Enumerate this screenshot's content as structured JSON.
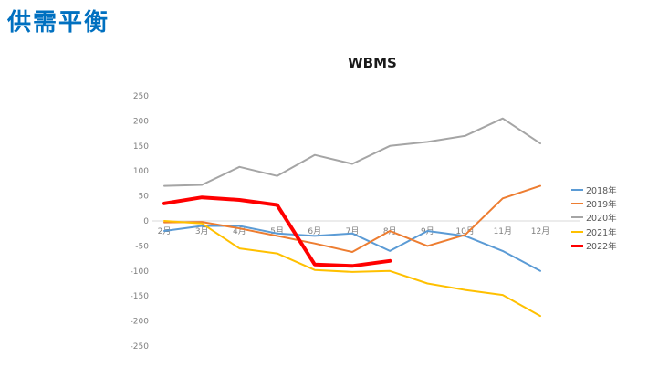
{
  "page": {
    "title": "供需平衡"
  },
  "chart_data": {
    "type": "line",
    "title": "WBMS",
    "categories": [
      "2月",
      "3月",
      "4月",
      "5月",
      "6月",
      "7月",
      "8月",
      "9月",
      "10月",
      "11月",
      "12月"
    ],
    "series": [
      {
        "name": "2018年",
        "color": "#5B9BD5",
        "width": 2,
        "values": [
          -20,
          -10,
          -10,
          -25,
          -30,
          -25,
          -60,
          -20,
          -30,
          -60,
          -100
        ]
      },
      {
        "name": "2019年",
        "color": "#ED7D31",
        "width": 2,
        "values": [
          -3,
          -2,
          -15,
          -30,
          -45,
          -62,
          -20,
          -50,
          -28,
          45,
          70
        ]
      },
      {
        "name": "2020年",
        "color": "#A5A5A5",
        "width": 2,
        "values": [
          70,
          72,
          108,
          90,
          132,
          114,
          150,
          158,
          170,
          205,
          155
        ]
      },
      {
        "name": "2021年",
        "color": "#FFC000",
        "width": 2,
        "values": [
          0,
          -5,
          -55,
          -65,
          -98,
          -102,
          -100,
          -125,
          -138,
          -148,
          -190
        ]
      },
      {
        "name": "2022年",
        "color": "#FF0000",
        "width": 4,
        "values": [
          35,
          47,
          42,
          32,
          -87,
          -90,
          -80,
          null,
          null,
          null,
          null
        ]
      }
    ],
    "ylim": [
      -250,
      250
    ],
    "ytick_step": 50,
    "ytick_labels": [
      "250",
      "200",
      "150",
      "100",
      "50",
      "0",
      "-50",
      "-100",
      "-150",
      "-200",
      "-250"
    ],
    "grid": "zero-line-only",
    "legend_position": "right",
    "xlabel": "",
    "ylabel": ""
  },
  "colors": {
    "page_title": "#0070C0",
    "axis_text": "#7f7f7f",
    "legend_text": "#595959",
    "zero_line": "#D9D9D9"
  }
}
